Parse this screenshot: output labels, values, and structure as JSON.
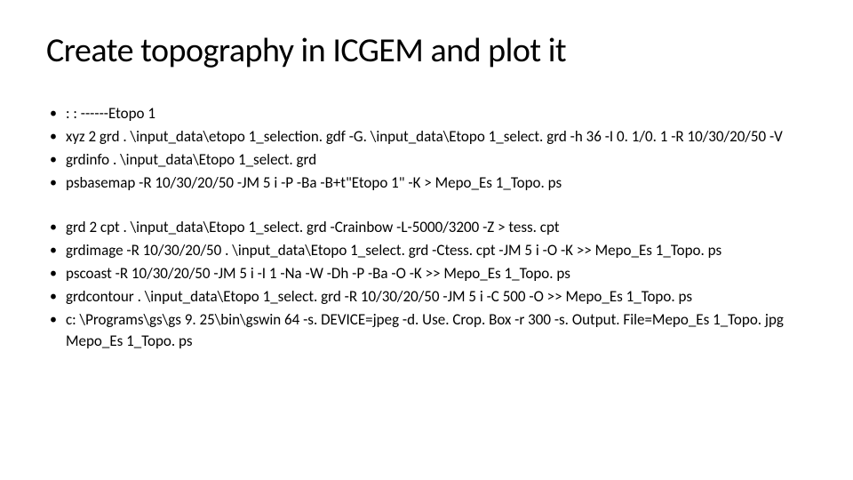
{
  "slide": {
    "title": "Create topography in ICGEM and plot it",
    "title_fontsize": 38,
    "title_color": "#000000",
    "body_fontsize": 17,
    "body_color": "#000000",
    "background_color": "#ffffff",
    "bullet_marker": "•",
    "group1": [
      ": : ------Etopo 1",
      "xyz 2 grd . \\input_data\\etopo 1_selection. gdf -G. \\input_data\\Etopo 1_select. grd -h 36 -I 0. 1/0. 1 -R 10/30/20/50 -V",
      "grdinfo . \\input_data\\Etopo 1_select. grd",
      "psbasemap  -R 10/30/20/50 -JM 5 i  -P  -Ba -B+t\"Etopo 1\" -K > Mepo_Es 1_Topo. ps"
    ],
    "group2": [
      "grd 2 cpt . \\input_data\\Etopo 1_select. grd -Crainbow -L-5000/3200 -Z  > tess. cpt",
      "grdimage -R 10/30/20/50 . \\input_data\\Etopo 1_select. grd -Ctess. cpt -JM 5 i -O -K >> Mepo_Es 1_Topo. ps",
      "pscoast -R 10/30/20/50 -JM 5 i -I 1 -Na -W -Dh -P -Ba -O -K >> Mepo_Es 1_Topo. ps",
      "grdcontour . \\input_data\\Etopo 1_select. grd -R 10/30/20/50 -JM 5 i -C 500 -O  >> Mepo_Es 1_Topo. ps",
      "c: \\Programs\\gs\\gs 9. 25\\bin\\gswin 64 -s. DEVICE=jpeg -d. Use. Crop. Box -r 300 -s. Output. File=Mepo_Es 1_Topo. jpg  Mepo_Es 1_Topo. ps"
    ]
  }
}
